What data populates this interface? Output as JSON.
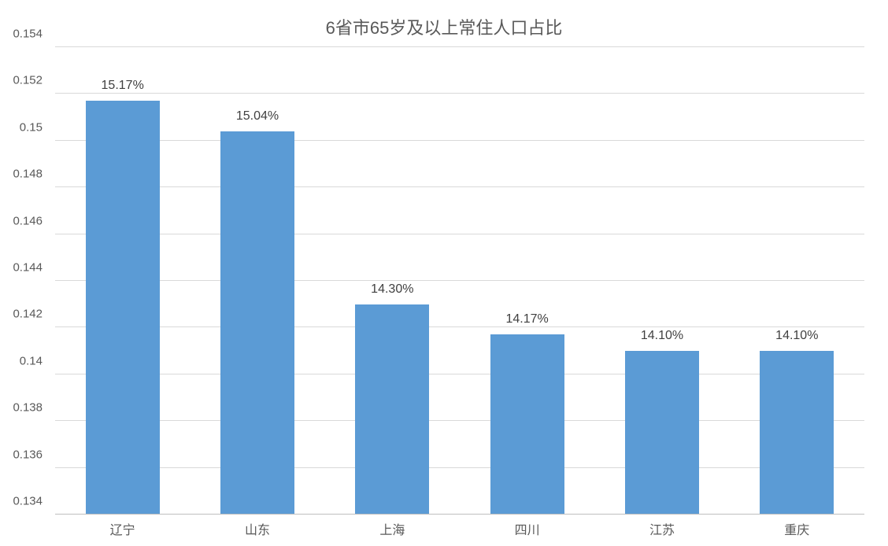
{
  "chart": {
    "type": "bar",
    "title": "6省市65岁及以上常住人口占比",
    "title_fontsize": 22,
    "title_color": "#595959",
    "background_color": "#ffffff",
    "grid_color": "#d9d9d9",
    "axis_label_color": "#595959",
    "axis_label_fontsize": 15,
    "bar_label_color": "#404040",
    "bar_label_fontsize": 16,
    "bar_color": "#5b9bd5",
    "bar_width_ratio": 0.55,
    "y_axis": {
      "min": 0.134,
      "max": 0.154,
      "tick_step": 0.002,
      "ticks": [
        {
          "value": 0.134,
          "label": "0.134"
        },
        {
          "value": 0.136,
          "label": "0.136"
        },
        {
          "value": 0.138,
          "label": "0.138"
        },
        {
          "value": 0.14,
          "label": "0.14"
        },
        {
          "value": 0.142,
          "label": "0.142"
        },
        {
          "value": 0.144,
          "label": "0.144"
        },
        {
          "value": 0.146,
          "label": "0.146"
        },
        {
          "value": 0.148,
          "label": "0.148"
        },
        {
          "value": 0.15,
          "label": "0.15"
        },
        {
          "value": 0.152,
          "label": "0.152"
        },
        {
          "value": 0.154,
          "label": "0.154"
        }
      ]
    },
    "categories": [
      "辽宁",
      "山东",
      "上海",
      "四川",
      "江苏",
      "重庆"
    ],
    "values": [
      0.1517,
      0.1504,
      0.143,
      0.1417,
      0.141,
      0.141
    ],
    "value_labels": [
      "15.17%",
      "15.04%",
      "14.30%",
      "14.17%",
      "14.10%",
      "14.10%"
    ]
  }
}
